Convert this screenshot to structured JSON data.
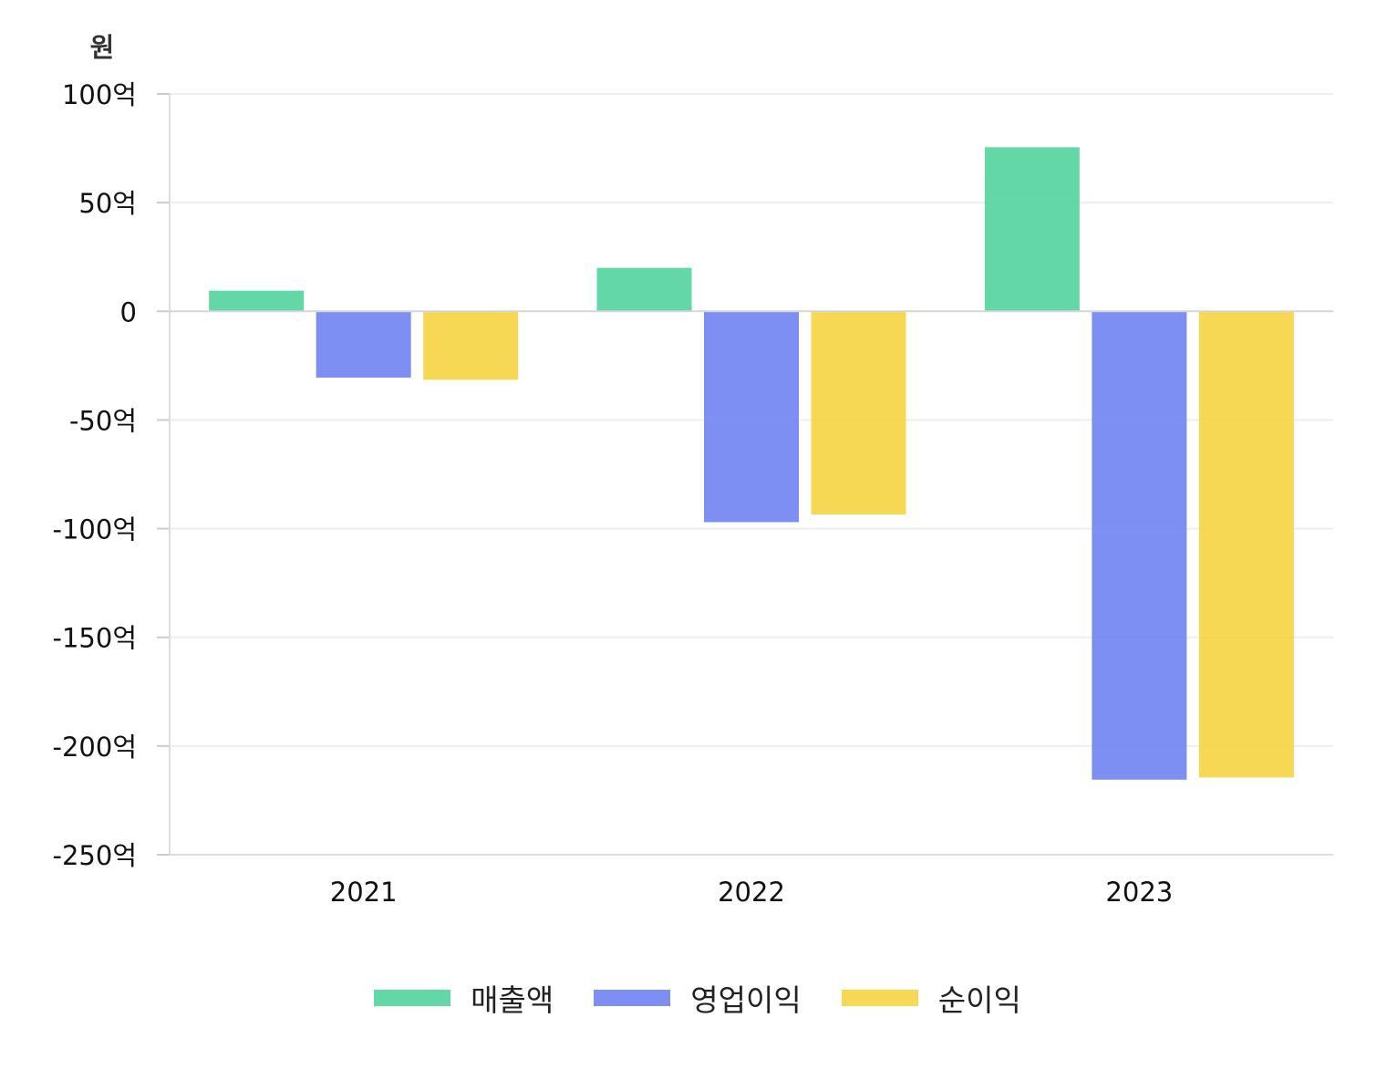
{
  "chart_data": {
    "type": "bar",
    "unit_label": "원",
    "categories": [
      "2021",
      "2022",
      "2023"
    ],
    "series": [
      {
        "name": "매출액",
        "color": "#4fd19b",
        "values": [
          9.5,
          20,
          75.5
        ]
      },
      {
        "name": "영업이익",
        "color": "#6b80f0",
        "values": [
          -30.5,
          -97,
          -215.5
        ]
      },
      {
        "name": "순이익",
        "color": "#f5d33c",
        "values": [
          -31.5,
          -93.5,
          -214.5
        ]
      }
    ],
    "ylim": [
      -250,
      100
    ],
    "yticks": [
      100,
      50,
      0,
      -50,
      -100,
      -150,
      -200,
      -250
    ],
    "ytick_labels": [
      "100억",
      "50억",
      "0",
      "-50억",
      "-100억",
      "-150억",
      "-200억",
      "-250억"
    ],
    "grid": true,
    "legend_position": "bottom-center"
  }
}
